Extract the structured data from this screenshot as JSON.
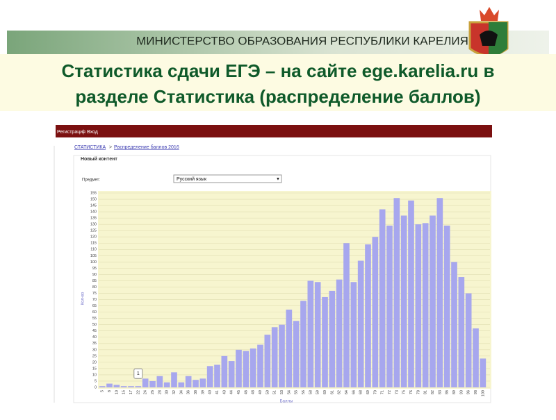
{
  "header": {
    "ministry": "МИНИСТЕРСТВО ОБРАЗОВАНИЯ РЕСПУБЛИКИ КАРЕЛИЯ",
    "title_line1": "Статистика сдачи ЕГЭ – на сайте ege.karelia.ru в",
    "title_line2": "разделе Статистика (распределение баллов)"
  },
  "site": {
    "register": "Регистрация",
    "separator": "|",
    "login": "Вход",
    "breadcrumb_root": "СТАТИСТИКА",
    "breadcrumb_sep": ">",
    "breadcrumb_page": "Распределение баллов 2016",
    "section": "Новый контент",
    "subject_label": "Предмет:",
    "subject_value": "Русский язык",
    "dropdown_arrow": "▼"
  },
  "chart_data": {
    "type": "bar",
    "x_label": "Баллы",
    "y_label": "Кол-во",
    "color": "#a7a7ee",
    "grid": true,
    "categories": [
      "5",
      "8",
      "10",
      "15",
      "17",
      "22",
      "24",
      "26",
      "28",
      "30",
      "32",
      "34",
      "36",
      "38",
      "39",
      "40",
      "41",
      "43",
      "44",
      "45",
      "46",
      "48",
      "49",
      "50",
      "51",
      "53",
      "54",
      "55",
      "56",
      "58",
      "59",
      "60",
      "61",
      "62",
      "64",
      "66",
      "68",
      "69",
      "70",
      "71",
      "72",
      "73",
      "75",
      "76",
      "78",
      "81",
      "82",
      "83",
      "86",
      "89",
      "93",
      "96",
      "98",
      "100"
    ],
    "values": [
      1,
      3,
      2,
      1,
      1,
      1,
      7,
      5,
      9,
      4,
      12,
      4,
      9,
      6,
      7,
      17,
      18,
      25,
      21,
      30,
      29,
      31,
      34,
      42,
      48,
      50,
      62,
      53,
      69,
      85,
      84,
      72,
      77,
      86,
      115,
      84,
      101,
      114,
      120,
      142,
      129,
      151,
      137,
      149,
      130,
      131,
      137,
      151,
      129,
      100,
      88,
      75,
      47,
      23
    ],
    "tooltip_index": 5,
    "ylim": [
      0,
      155
    ],
    "yticks": [
      0,
      5,
      10,
      15,
      20,
      25,
      30,
      35,
      40,
      45,
      50,
      55,
      60,
      65,
      70,
      75,
      80,
      85,
      90,
      95,
      100,
      105,
      110,
      115,
      120,
      125,
      130,
      135,
      140,
      145,
      150,
      155
    ]
  }
}
